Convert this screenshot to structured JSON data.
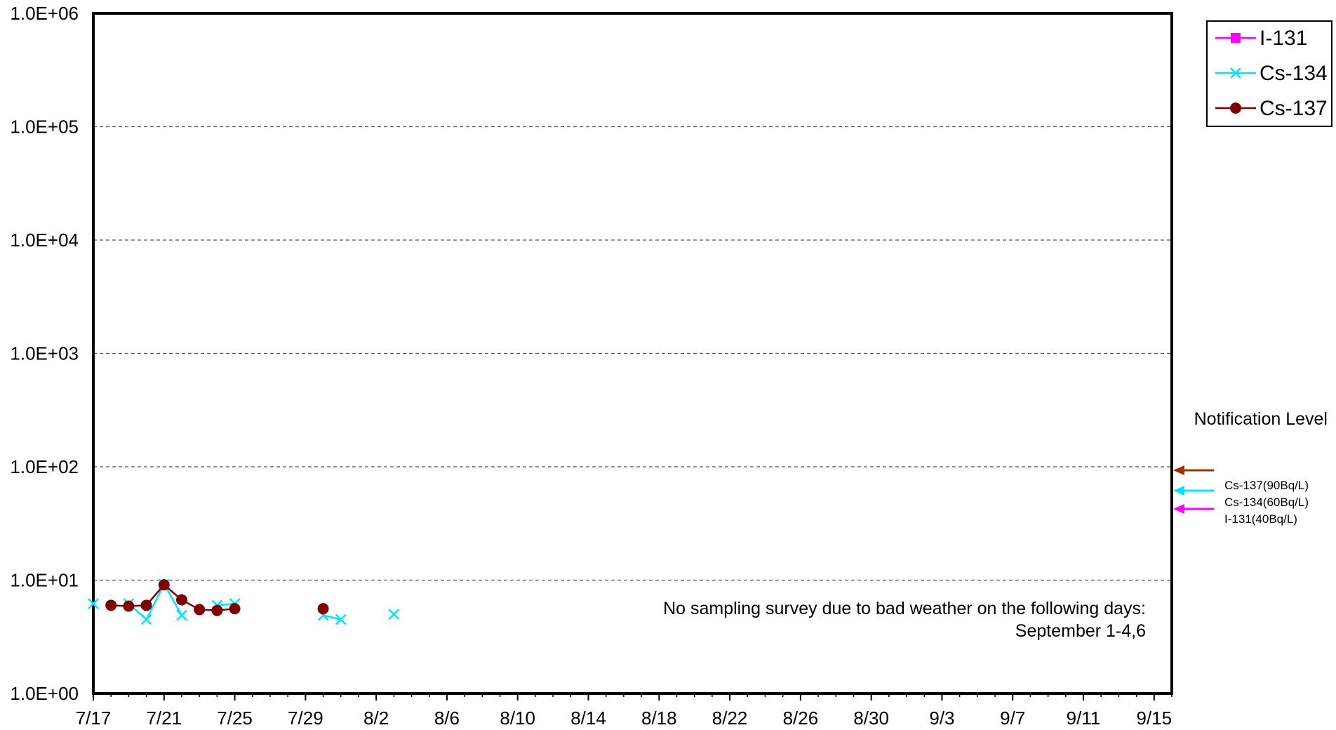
{
  "chart_data": {
    "type": "line",
    "title": "",
    "xlabel": "",
    "ylabel": "",
    "x_type": "date",
    "year": 2012,
    "x_range": [
      "2012-07-17",
      "2012-09-16"
    ],
    "x_ticks": [
      "7/17",
      "7/21",
      "7/25",
      "7/29",
      "8/2",
      "8/6",
      "8/10",
      "8/14",
      "8/18",
      "8/22",
      "8/26",
      "8/30",
      "9/3",
      "9/7",
      "9/11",
      "9/15"
    ],
    "x_tick_dates": [
      "2012-07-17",
      "2012-07-21",
      "2012-07-25",
      "2012-07-29",
      "2012-08-02",
      "2012-08-06",
      "2012-08-10",
      "2012-08-14",
      "2012-08-18",
      "2012-08-22",
      "2012-08-26",
      "2012-08-30",
      "2012-09-03",
      "2012-09-07",
      "2012-09-11",
      "2012-09-15"
    ],
    "y_scale": "log",
    "ylim": [
      1,
      1000000
    ],
    "y_ticks": [
      1,
      10,
      100,
      1000,
      10000,
      100000,
      1000000
    ],
    "y_tick_labels": [
      "1.0E+00",
      "1.0E+01",
      "1.0E+02",
      "1.0E+03",
      "1.0E+04",
      "1.0E+05",
      "1.0E+06"
    ],
    "grid": "horizontal-dashed",
    "legend_position": "top-right",
    "series": [
      {
        "name": "I-131",
        "color": "#ff00ff",
        "marker": "square",
        "points": []
      },
      {
        "name": "Cs-134",
        "color": "#00e5ff",
        "marker": "x",
        "points": [
          {
            "x": "2012-07-17",
            "y": 6.2
          },
          {
            "x": "2012-07-19",
            "y": 6.2
          },
          {
            "x": "2012-07-20",
            "y": 4.5
          },
          {
            "x": "2012-07-21",
            "y": 9.2
          },
          {
            "x": "2012-07-22",
            "y": 4.9
          },
          {
            "x": "2012-07-24",
            "y": 6.0
          },
          {
            "x": "2012-07-25",
            "y": 6.2
          },
          {
            "x": "2012-07-30",
            "y": 4.9
          },
          {
            "x": "2012-07-31",
            "y": 4.5
          },
          {
            "x": "2012-08-03",
            "y": 5.0
          }
        ]
      },
      {
        "name": "Cs-137",
        "color": "#7f0000",
        "marker": "circle",
        "points": [
          {
            "x": "2012-07-18",
            "y": 6.0
          },
          {
            "x": "2012-07-19",
            "y": 5.9
          },
          {
            "x": "2012-07-20",
            "y": 6.0
          },
          {
            "x": "2012-07-21",
            "y": 9.1
          },
          {
            "x": "2012-07-22",
            "y": 6.7
          },
          {
            "x": "2012-07-23",
            "y": 5.5
          },
          {
            "x": "2012-07-24",
            "y": 5.4
          },
          {
            "x": "2012-07-25",
            "y": 5.6
          },
          {
            "x": "2012-07-30",
            "y": 5.6
          }
        ]
      }
    ],
    "annotations": {
      "note_line1": "No sampling survey due to bad weather on the following days:",
      "note_line2": "September 1-4,6",
      "notification_title": "Notification Level",
      "notification_levels": [
        {
          "label": "Cs-137(90Bq/L)",
          "value": 90,
          "color": "#993300"
        },
        {
          "label": "Cs-134(60Bq/L)",
          "value": 60,
          "color": "#00e5ff"
        },
        {
          "label": "I-131(40Bq/L)",
          "value": 40,
          "color": "#ff00ff"
        }
      ]
    }
  }
}
